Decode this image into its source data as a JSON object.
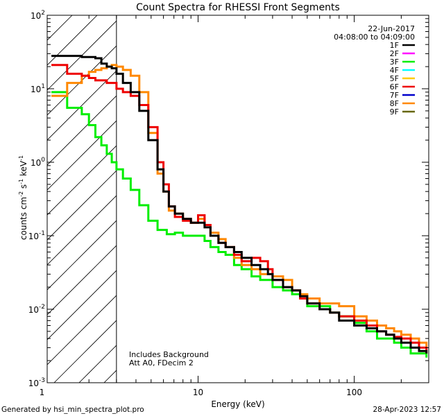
{
  "chart_data": {
    "type": "line",
    "title": "Count Spectra for RHESSI Front Segments",
    "xlabel": "Energy (keV)",
    "ylabel_parts": [
      "counts cm",
      "-2",
      " s",
      "-1",
      " keV",
      "-1"
    ],
    "xscale": "log",
    "yscale": "log",
    "xlim": [
      1.08,
      300
    ],
    "ylim": [
      0.001,
      100
    ],
    "x_ticks": [
      {
        "v": 1,
        "label": "1"
      },
      {
        "v": 10,
        "label": "10"
      },
      {
        "v": 100,
        "label": "100"
      }
    ],
    "y_ticks": [
      {
        "v": 0.001,
        "base": "10",
        "exp": "-3"
      },
      {
        "v": 0.01,
        "base": "10",
        "exp": "-2"
      },
      {
        "v": 0.1,
        "base": "10",
        "exp": "-1"
      },
      {
        "v": 1,
        "base": "10",
        "exp": "0"
      },
      {
        "v": 10,
        "base": "10",
        "exp": "1"
      },
      {
        "v": 100,
        "base": "10",
        "exp": "2"
      }
    ],
    "date": "22-Jun-2017",
    "time_range": "04:08:00 to 04:09:00",
    "threshold_energy": 3,
    "annotation_lines": [
      "Includes Background",
      "Att A0, FDecim 2"
    ],
    "legend": [
      {
        "label": "1F",
        "color": "#000000"
      },
      {
        "label": "2F",
        "color": "#ff00ff"
      },
      {
        "label": "3F",
        "color": "#00ee00"
      },
      {
        "label": "4F",
        "color": "#00ffff"
      },
      {
        "label": "5F",
        "color": "#ffcc00"
      },
      {
        "label": "6F",
        "color": "#ee0000"
      },
      {
        "label": "7F",
        "color": "#0000cc"
      },
      {
        "label": "8F",
        "color": "#ff8800"
      },
      {
        "label": "9F",
        "color": "#666600"
      }
    ],
    "series": [
      {
        "name": "3F",
        "color": "#00ee00",
        "x": [
          1.15,
          1.3,
          1.45,
          1.6,
          1.8,
          2.0,
          2.2,
          2.4,
          2.6,
          2.8,
          3.0,
          3.3,
          3.7,
          4.2,
          4.8,
          5.5,
          6.3,
          7.1,
          8.0,
          9.0,
          10.0,
          11.0,
          12.0,
          13.5,
          15.0,
          17.0,
          19.0,
          22.0,
          25.0,
          30.0,
          35.0,
          40.0,
          45.0,
          50.0,
          60.0,
          70.0,
          80.0,
          100.0,
          120.0,
          140.0,
          160.0,
          180.0,
          200.0,
          230.0,
          260.0,
          290.0
        ],
        "y": [
          9,
          9,
          5.5,
          5.5,
          4.5,
          3.2,
          2.2,
          1.7,
          1.3,
          1.0,
          0.8,
          0.6,
          0.42,
          0.26,
          0.16,
          0.12,
          0.105,
          0.11,
          0.1,
          0.1,
          0.1,
          0.085,
          0.07,
          0.06,
          0.055,
          0.04,
          0.035,
          0.028,
          0.025,
          0.02,
          0.018,
          0.016,
          0.014,
          0.011,
          0.011,
          0.009,
          0.008,
          0.0065,
          0.005,
          0.004,
          0.004,
          0.0035,
          0.003,
          0.0025,
          0.0025,
          0.0022
        ]
      },
      {
        "name": "8F",
        "color": "#ff8800",
        "x": [
          1.15,
          1.3,
          1.45,
          1.6,
          1.8,
          2.0,
          2.2,
          2.4,
          2.6,
          2.8,
          3.0,
          3.3,
          3.7,
          4.2,
          4.8,
          5.5,
          6.0,
          6.5,
          7.1,
          8.0,
          9.0,
          10.0,
          11.0,
          12.0,
          13.5,
          15.0,
          17.0,
          19.0,
          22.0,
          25.0,
          30.0,
          35.0,
          40.0,
          45.0,
          50.0,
          60.0,
          70.0,
          80.0,
          100.0,
          120.0,
          140.0,
          160.0,
          180.0,
          200.0,
          230.0,
          260.0,
          290.0
        ],
        "y": [
          8,
          8,
          12,
          12,
          15,
          17,
          18,
          19,
          20,
          21,
          20,
          18,
          15,
          9,
          2.5,
          0.7,
          0.4,
          0.22,
          0.2,
          0.17,
          0.15,
          0.17,
          0.14,
          0.11,
          0.09,
          0.07,
          0.05,
          0.04,
          0.035,
          0.03,
          0.028,
          0.025,
          0.018,
          0.016,
          0.014,
          0.012,
          0.012,
          0.011,
          0.008,
          0.007,
          0.006,
          0.0055,
          0.005,
          0.0045,
          0.004,
          0.0035,
          0.003
        ]
      },
      {
        "name": "6F",
        "color": "#ee0000",
        "x": [
          1.15,
          1.3,
          1.45,
          1.6,
          1.8,
          2.0,
          2.2,
          2.4,
          2.6,
          2.8,
          3.0,
          3.3,
          3.7,
          4.2,
          4.8,
          5.5,
          6.0,
          6.5,
          7.1,
          8.0,
          9.0,
          10.0,
          11.0,
          12.0,
          13.5,
          15.0,
          17.0,
          19.0,
          22.0,
          25.0,
          28.0,
          30.0,
          35.0,
          40.0,
          45.0,
          50.0,
          60.0,
          70.0,
          80.0,
          100.0,
          120.0,
          140.0,
          160.0,
          180.0,
          200.0,
          230.0,
          260.0,
          290.0
        ],
        "y": [
          21,
          21,
          16,
          16,
          15,
          14,
          13,
          13,
          12,
          12,
          10,
          9,
          8,
          6,
          3,
          1.0,
          0.5,
          0.25,
          0.18,
          0.16,
          0.15,
          0.19,
          0.14,
          0.1,
          0.08,
          0.07,
          0.055,
          0.045,
          0.05,
          0.045,
          0.035,
          0.025,
          0.02,
          0.018,
          0.014,
          0.012,
          0.01,
          0.009,
          0.008,
          0.007,
          0.006,
          0.005,
          0.0045,
          0.0042,
          0.004,
          0.0035,
          0.003,
          0.0025
        ]
      },
      {
        "name": "1F",
        "color": "#000000",
        "x": [
          1.15,
          1.3,
          1.45,
          1.6,
          1.8,
          2.0,
          2.2,
          2.4,
          2.6,
          2.8,
          3.0,
          3.3,
          3.7,
          4.2,
          4.8,
          5.5,
          6.0,
          6.5,
          7.1,
          8.0,
          9.0,
          10.0,
          11.0,
          12.0,
          13.5,
          15.0,
          17.0,
          19.0,
          22.0,
          25.0,
          28.0,
          30.0,
          35.0,
          40.0,
          45.0,
          50.0,
          60.0,
          70.0,
          80.0,
          100.0,
          120.0,
          140.0,
          160.0,
          180.0,
          200.0,
          230.0,
          260.0,
          290.0
        ],
        "y": [
          28,
          28,
          28,
          28,
          27,
          27,
          26,
          22,
          20,
          19,
          16,
          12,
          9,
          5,
          2,
          0.8,
          0.4,
          0.25,
          0.2,
          0.17,
          0.15,
          0.15,
          0.13,
          0.1,
          0.08,
          0.07,
          0.06,
          0.05,
          0.04,
          0.035,
          0.03,
          0.025,
          0.02,
          0.018,
          0.015,
          0.012,
          0.01,
          0.009,
          0.007,
          0.006,
          0.0055,
          0.005,
          0.0045,
          0.004,
          0.0035,
          0.003,
          0.0027,
          0.0025
        ]
      }
    ]
  },
  "footer": {
    "generated_by": "Generated by hsi_min_spectra_plot.pro",
    "timestamp": "28-Apr-2023 12:57"
  }
}
